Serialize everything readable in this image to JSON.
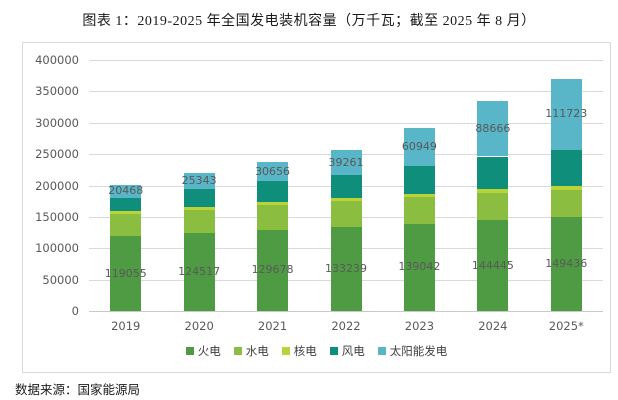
{
  "title": "图表 1：2019-2025 年全国发电装机容量（万千瓦；截至 2025 年 8 月）",
  "source_note": "数据来源：国家能源局",
  "colors": {
    "thermal": "#4F9B44",
    "hydro": "#8BBD41",
    "nuclear": "#BAD336",
    "wind": "#108E7C",
    "solar": "#58B6C8",
    "gridline": "#d9d9d9",
    "axis_text": "#595959",
    "data_label_text": "#595959",
    "legend_text": "#404040",
    "frame_border": "#d9d9d9"
  },
  "chart_data": {
    "type": "bar",
    "stacked": true,
    "title": "图表 1：2019-2025 年全国发电装机容量（万千瓦；截至 2025 年 8 月）",
    "categories": [
      "2019",
      "2020",
      "2021",
      "2022",
      "2023",
      "2024",
      "2025*"
    ],
    "series": [
      {
        "name": "火电",
        "color_key": "thermal",
        "values": [
          119055,
          124517,
          129678,
          133239,
          139042,
          144445,
          149436
        ],
        "labels_visible": true
      },
      {
        "name": "水电",
        "color_key": "hydro",
        "values": [
          35800,
          37000,
          39100,
          41350,
          42150,
          43600,
          44100
        ],
        "labels_visible": false
      },
      {
        "name": "核电",
        "color_key": "nuclear",
        "values": [
          4900,
          5000,
          5300,
          5550,
          5700,
          6100,
          6150
        ],
        "labels_visible": false
      },
      {
        "name": "风电",
        "color_key": "wind",
        "values": [
          21000,
          28150,
          32850,
          36550,
          44130,
          52070,
          57650
        ],
        "labels_visible": false
      },
      {
        "name": "太阳能发电",
        "color_key": "solar",
        "values": [
          20468,
          25343,
          30656,
          39261,
          60949,
          88666,
          111723
        ],
        "labels_visible": true
      }
    ],
    "unlabeled_series_estimated_from_bar_heights": true,
    "ylim": [
      0,
      400000
    ],
    "y_ticks": [
      0,
      50000,
      100000,
      150000,
      200000,
      250000,
      300000,
      350000,
      400000
    ],
    "grid": true,
    "legend_position": "bottom"
  }
}
